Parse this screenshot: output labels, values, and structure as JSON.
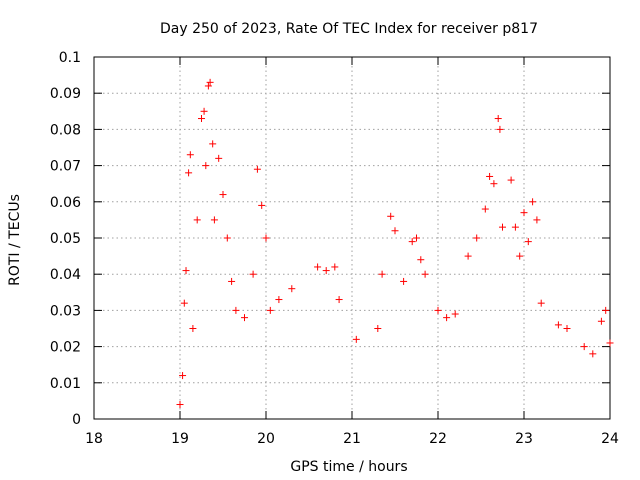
{
  "chart_data": {
    "type": "scatter",
    "title": "Day 250 of 2023, Rate Of TEC Index for receiver p817",
    "xlabel": "GPS time / hours",
    "ylabel": "ROTI / TECUs",
    "xlim": [
      18,
      24
    ],
    "ylim": [
      0,
      0.1
    ],
    "x_ticks": [
      "18",
      "19",
      "20",
      "21",
      "22",
      "23",
      "24"
    ],
    "y_ticks": [
      "0",
      "0.01",
      "0.02",
      "0.03",
      "0.04",
      "0.05",
      "0.06",
      "0.07",
      "0.08",
      "0.09",
      "0.1"
    ],
    "grid": true,
    "marker": "+",
    "marker_color": "#ff0000",
    "series": [
      {
        "points": [
          [
            19.0,
            0.004
          ],
          [
            19.03,
            0.012
          ],
          [
            19.05,
            0.032
          ],
          [
            19.07,
            0.041
          ],
          [
            19.1,
            0.068
          ],
          [
            19.12,
            0.073
          ],
          [
            19.15,
            0.025
          ],
          [
            19.2,
            0.055
          ],
          [
            19.25,
            0.083
          ],
          [
            19.28,
            0.085
          ],
          [
            19.3,
            0.07
          ],
          [
            19.33,
            0.092
          ],
          [
            19.35,
            0.093
          ],
          [
            19.38,
            0.076
          ],
          [
            19.4,
            0.055
          ],
          [
            19.45,
            0.072
          ],
          [
            19.5,
            0.062
          ],
          [
            19.55,
            0.05
          ],
          [
            19.6,
            0.038
          ],
          [
            19.65,
            0.03
          ],
          [
            19.75,
            0.028
          ],
          [
            19.85,
            0.04
          ],
          [
            19.9,
            0.069
          ],
          [
            19.95,
            0.059
          ],
          [
            20.0,
            0.05
          ],
          [
            20.05,
            0.03
          ],
          [
            20.15,
            0.033
          ],
          [
            20.3,
            0.036
          ],
          [
            20.6,
            0.042
          ],
          [
            20.7,
            0.041
          ],
          [
            20.8,
            0.042
          ],
          [
            20.85,
            0.033
          ],
          [
            21.05,
            0.022
          ],
          [
            21.3,
            0.025
          ],
          [
            21.35,
            0.04
          ],
          [
            21.45,
            0.056
          ],
          [
            21.5,
            0.052
          ],
          [
            21.6,
            0.038
          ],
          [
            21.7,
            0.049
          ],
          [
            21.75,
            0.05
          ],
          [
            21.8,
            0.044
          ],
          [
            21.85,
            0.04
          ],
          [
            22.0,
            0.03
          ],
          [
            22.1,
            0.028
          ],
          [
            22.2,
            0.029
          ],
          [
            22.35,
            0.045
          ],
          [
            22.45,
            0.05
          ],
          [
            22.55,
            0.058
          ],
          [
            22.6,
            0.067
          ],
          [
            22.65,
            0.065
          ],
          [
            22.7,
            0.083
          ],
          [
            22.72,
            0.08
          ],
          [
            22.75,
            0.053
          ],
          [
            22.85,
            0.066
          ],
          [
            22.9,
            0.053
          ],
          [
            22.95,
            0.045
          ],
          [
            23.0,
            0.057
          ],
          [
            23.05,
            0.049
          ],
          [
            23.1,
            0.06
          ],
          [
            23.15,
            0.055
          ],
          [
            23.2,
            0.032
          ],
          [
            23.4,
            0.026
          ],
          [
            23.5,
            0.025
          ],
          [
            23.7,
            0.02
          ],
          [
            23.8,
            0.018
          ],
          [
            23.9,
            0.027
          ],
          [
            23.95,
            0.03
          ],
          [
            24.0,
            0.021
          ]
        ]
      }
    ]
  }
}
